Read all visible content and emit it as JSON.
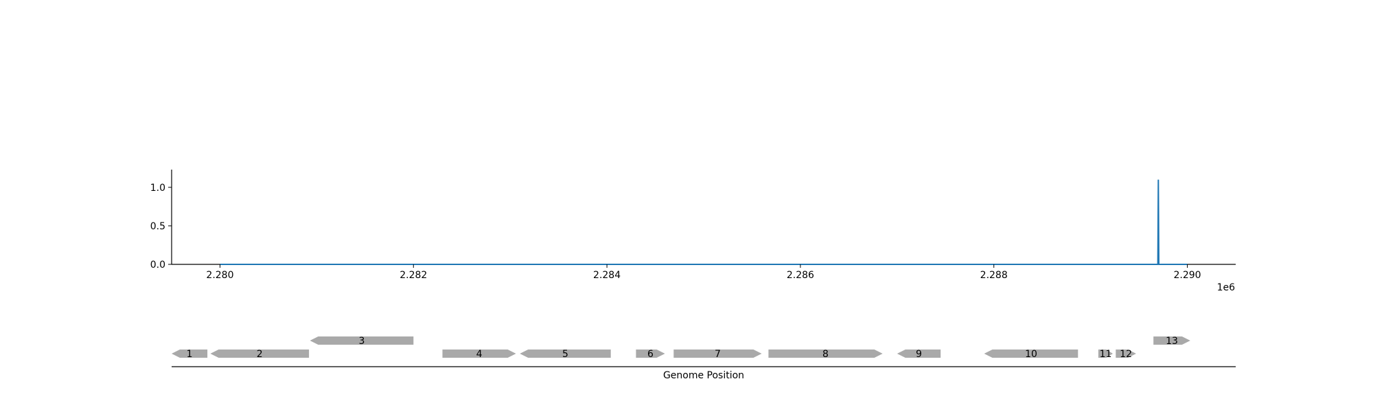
{
  "chart_data": {
    "type": "line",
    "title": "",
    "xlabel": "Genome Position",
    "ylabel": "",
    "x_offset_label": "1e6",
    "xlim": [
      2279500,
      2290500
    ],
    "ylim": [
      0,
      1.23
    ],
    "x_ticks": [
      2280000,
      2282000,
      2284000,
      2286000,
      2288000,
      2290000
    ],
    "x_tick_labels": [
      "2.280",
      "2.282",
      "2.284",
      "2.286",
      "2.288",
      "2.290"
    ],
    "y_ticks": [
      0,
      0.5,
      1.0
    ],
    "y_tick_labels": [
      "0.0",
      "0.5",
      "1.0"
    ],
    "grid": false,
    "series": [
      {
        "color": "#1f77b4",
        "x": [
          2280000,
          2289695,
          2289700,
          2289705,
          2290000
        ],
        "y": [
          0,
          0,
          1.1,
          0,
          0
        ]
      }
    ],
    "genes": [
      {
        "label": "1",
        "start": 2279500,
        "end": 2279870,
        "strand": "-",
        "row": 0
      },
      {
        "label": "2",
        "start": 2279900,
        "end": 2280920,
        "strand": "-",
        "row": 0
      },
      {
        "label": "3",
        "start": 2280930,
        "end": 2282000,
        "strand": "-",
        "row": 1
      },
      {
        "label": "4",
        "start": 2282300,
        "end": 2283060,
        "strand": "+",
        "row": 0
      },
      {
        "label": "5",
        "start": 2283100,
        "end": 2284040,
        "strand": "-",
        "row": 0
      },
      {
        "label": "6",
        "start": 2284300,
        "end": 2284600,
        "strand": "+",
        "row": 0
      },
      {
        "label": "7",
        "start": 2284690,
        "end": 2285600,
        "strand": "+",
        "row": 0
      },
      {
        "label": "8",
        "start": 2285670,
        "end": 2286850,
        "strand": "+",
        "row": 0
      },
      {
        "label": "9",
        "start": 2287000,
        "end": 2287450,
        "strand": "-",
        "row": 0
      },
      {
        "label": "10",
        "start": 2287900,
        "end": 2288870,
        "strand": "-",
        "row": 0
      },
      {
        "label": "11",
        "start": 2289080,
        "end": 2289230,
        "strand": "+",
        "row": 0
      },
      {
        "label": "12",
        "start": 2289260,
        "end": 2289470,
        "strand": "+",
        "row": 0
      },
      {
        "label": "13",
        "start": 2289650,
        "end": 2290030,
        "strand": "+",
        "row": 1
      }
    ],
    "gene_color": "#a9a9a9"
  }
}
